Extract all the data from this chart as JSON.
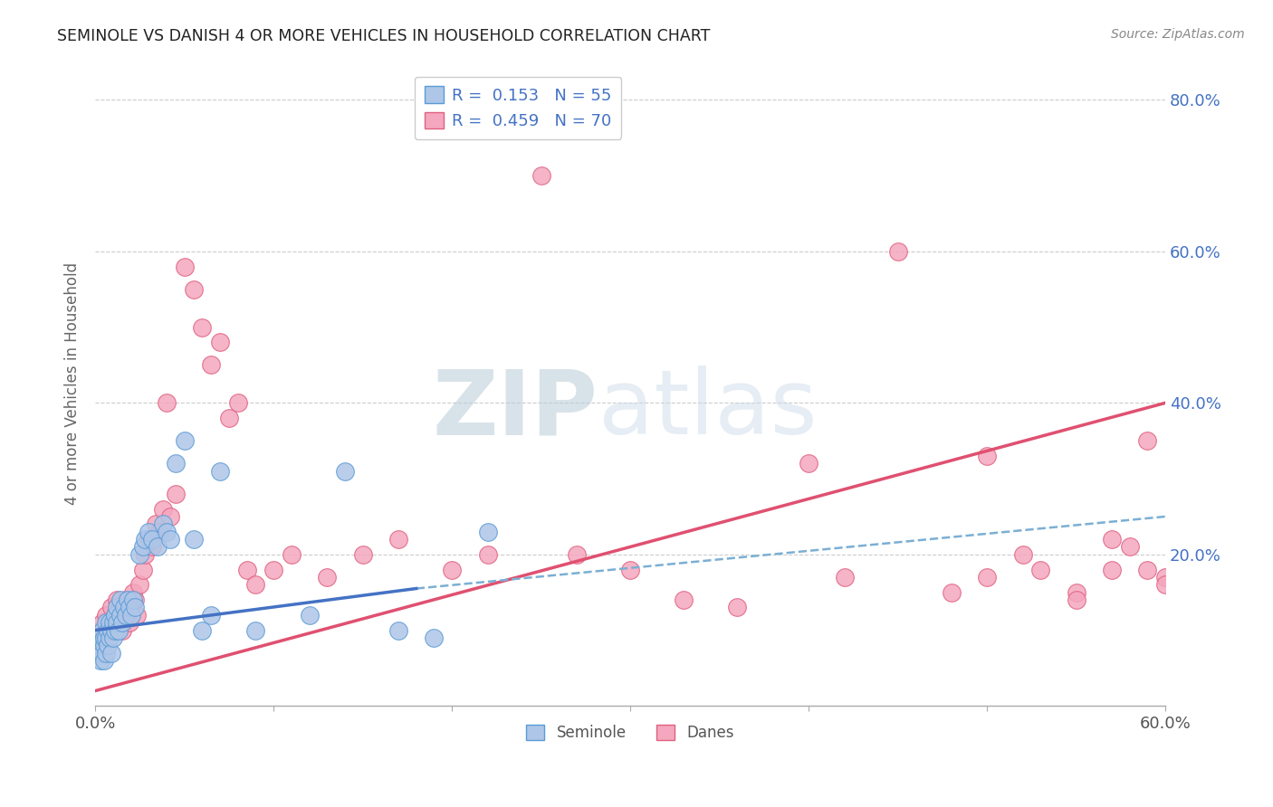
{
  "title": "SEMINOLE VS DANISH 4 OR MORE VEHICLES IN HOUSEHOLD CORRELATION CHART",
  "source": "Source: ZipAtlas.com",
  "ylabel": "4 or more Vehicles in Household",
  "ytick_labels": [
    "80.0%",
    "60.0%",
    "40.0%",
    "20.0%"
  ],
  "ytick_vals": [
    0.8,
    0.6,
    0.4,
    0.2
  ],
  "seminole_color": "#aec6e8",
  "danes_color": "#f4a7be",
  "seminole_edge_color": "#5b9bd5",
  "danes_edge_color": "#e06080",
  "seminole_line_color": "#4472c4",
  "danes_line_color": "#e05070",
  "seminole_dash_color": "#7bafd4",
  "watermark_color": "#ccd9e8",
  "background_color": "#ffffff",
  "legend_label_color": "#4472c4",
  "tick_label_color": "#4472c4",
  "axis_label_color": "#666666",
  "seminole_scatter_x": [
    0.002,
    0.003,
    0.003,
    0.004,
    0.004,
    0.005,
    0.005,
    0.005,
    0.006,
    0.006,
    0.006,
    0.007,
    0.007,
    0.008,
    0.008,
    0.009,
    0.009,
    0.01,
    0.01,
    0.011,
    0.011,
    0.012,
    0.012,
    0.013,
    0.014,
    0.014,
    0.015,
    0.016,
    0.017,
    0.018,
    0.019,
    0.02,
    0.021,
    0.022,
    0.025,
    0.027,
    0.028,
    0.03,
    0.032,
    0.035,
    0.038,
    0.04,
    0.042,
    0.045,
    0.05,
    0.055,
    0.06,
    0.065,
    0.07,
    0.09,
    0.12,
    0.14,
    0.17,
    0.19,
    0.22
  ],
  "seminole_scatter_y": [
    0.08,
    0.06,
    0.09,
    0.07,
    0.1,
    0.06,
    0.08,
    0.09,
    0.07,
    0.09,
    0.11,
    0.08,
    0.1,
    0.09,
    0.11,
    0.1,
    0.07,
    0.09,
    0.11,
    0.1,
    0.12,
    0.11,
    0.13,
    0.1,
    0.12,
    0.14,
    0.11,
    0.13,
    0.12,
    0.14,
    0.13,
    0.12,
    0.14,
    0.13,
    0.2,
    0.21,
    0.22,
    0.23,
    0.22,
    0.21,
    0.24,
    0.23,
    0.22,
    0.32,
    0.35,
    0.22,
    0.1,
    0.12,
    0.31,
    0.1,
    0.12,
    0.31,
    0.1,
    0.09,
    0.23
  ],
  "danes_scatter_x": [
    0.003,
    0.004,
    0.005,
    0.006,
    0.007,
    0.008,
    0.009,
    0.01,
    0.011,
    0.012,
    0.013,
    0.014,
    0.015,
    0.016,
    0.017,
    0.018,
    0.019,
    0.02,
    0.021,
    0.022,
    0.023,
    0.025,
    0.027,
    0.028,
    0.03,
    0.032,
    0.034,
    0.036,
    0.038,
    0.04,
    0.042,
    0.045,
    0.05,
    0.055,
    0.06,
    0.065,
    0.07,
    0.075,
    0.08,
    0.085,
    0.09,
    0.1,
    0.11,
    0.13,
    0.15,
    0.17,
    0.2,
    0.22,
    0.25,
    0.27,
    0.3,
    0.33,
    0.36,
    0.4,
    0.42,
    0.45,
    0.48,
    0.5,
    0.52,
    0.55,
    0.57,
    0.58,
    0.59,
    0.6,
    0.6,
    0.59,
    0.57,
    0.55,
    0.53,
    0.5
  ],
  "danes_scatter_y": [
    0.1,
    0.11,
    0.09,
    0.12,
    0.1,
    0.11,
    0.13,
    0.1,
    0.12,
    0.14,
    0.11,
    0.13,
    0.1,
    0.12,
    0.14,
    0.13,
    0.11,
    0.13,
    0.15,
    0.14,
    0.12,
    0.16,
    0.18,
    0.2,
    0.22,
    0.21,
    0.24,
    0.23,
    0.26,
    0.4,
    0.25,
    0.28,
    0.58,
    0.55,
    0.5,
    0.45,
    0.48,
    0.38,
    0.4,
    0.18,
    0.16,
    0.18,
    0.2,
    0.17,
    0.2,
    0.22,
    0.18,
    0.2,
    0.7,
    0.2,
    0.18,
    0.14,
    0.13,
    0.32,
    0.17,
    0.6,
    0.15,
    0.17,
    0.2,
    0.15,
    0.18,
    0.21,
    0.35,
    0.17,
    0.16,
    0.18,
    0.22,
    0.14,
    0.18,
    0.33
  ]
}
